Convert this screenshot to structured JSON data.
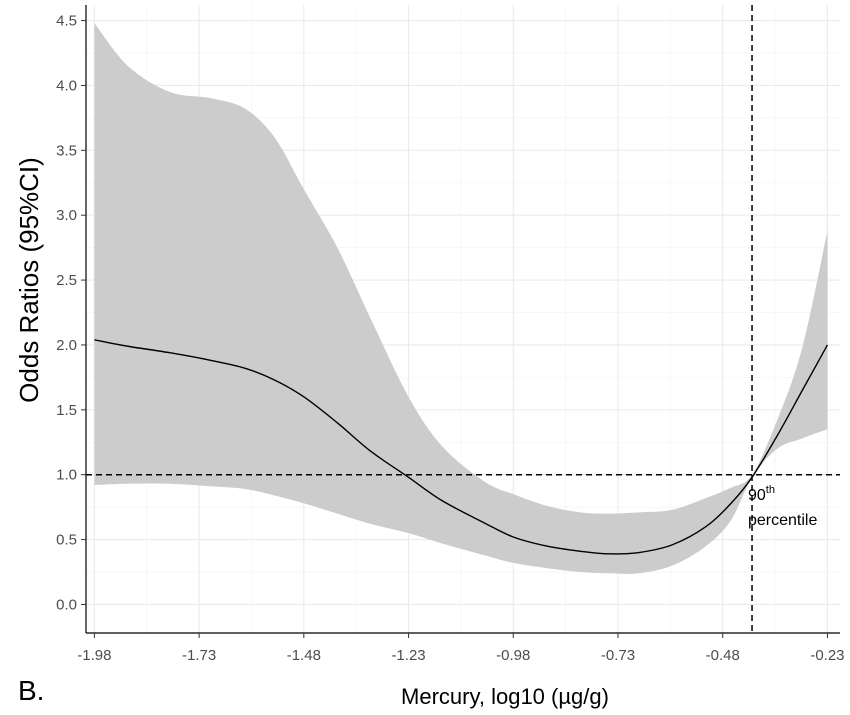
{
  "chart_data": {
    "type": "line",
    "panel_label": "B.",
    "xlabel": "Mercury, log10 (µg/g)",
    "ylabel": "Odds Ratios (95%CI)",
    "xlim": [
      -2.0,
      -0.2
    ],
    "ylim": [
      -0.22,
      4.62
    ],
    "x_ticks": [
      -1.98,
      -1.73,
      -1.48,
      -1.23,
      -0.98,
      -0.73,
      -0.48,
      -0.23
    ],
    "x_tick_labels": [
      "-1.98",
      "-1.73",
      "-1.48",
      "-1.23",
      "-0.98",
      "-0.73",
      "-0.48",
      "-0.23"
    ],
    "y_ticks": [
      0.0,
      0.5,
      1.0,
      1.5,
      2.0,
      2.5,
      3.0,
      3.5,
      4.0,
      4.5
    ],
    "y_tick_labels": [
      "0.0",
      "0.5",
      "1.0",
      "1.5",
      "2.0",
      "2.5",
      "3.0",
      "3.5",
      "4.0",
      "4.5"
    ],
    "grid": true,
    "reference_lines": {
      "hline_y": 1.0,
      "vline_x": -0.41
    },
    "annotation": {
      "base": "90",
      "sup": "th",
      "line2": "percentile"
    },
    "series": [
      {
        "x": [
          -1.98,
          -1.9,
          -1.8,
          -1.7,
          -1.62,
          -1.55,
          -1.48,
          -1.4,
          -1.32,
          -1.23,
          -1.15,
          -1.05,
          -0.98,
          -0.9,
          -0.82,
          -0.75,
          -0.68,
          -0.6,
          -0.52,
          -0.46,
          -0.41,
          -0.35,
          -0.29,
          -0.23
        ],
        "y": [
          2.04,
          1.99,
          1.94,
          1.88,
          1.82,
          1.73,
          1.6,
          1.4,
          1.18,
          0.98,
          0.8,
          0.63,
          0.52,
          0.45,
          0.41,
          0.39,
          0.4,
          0.46,
          0.6,
          0.78,
          0.98,
          1.3,
          1.65,
          2.0
        ],
        "lower": [
          0.92,
          0.93,
          0.93,
          0.91,
          0.89,
          0.84,
          0.78,
          0.7,
          0.62,
          0.55,
          0.47,
          0.38,
          0.32,
          0.28,
          0.25,
          0.24,
          0.24,
          0.3,
          0.45,
          0.65,
          0.98,
          1.2,
          1.28,
          1.35
        ],
        "upper": [
          4.48,
          4.15,
          3.95,
          3.9,
          3.82,
          3.6,
          3.2,
          2.75,
          2.2,
          1.6,
          1.22,
          0.95,
          0.85,
          0.76,
          0.71,
          0.7,
          0.71,
          0.73,
          0.82,
          0.9,
          1.0,
          1.42,
          1.98,
          2.88
        ]
      }
    ]
  }
}
